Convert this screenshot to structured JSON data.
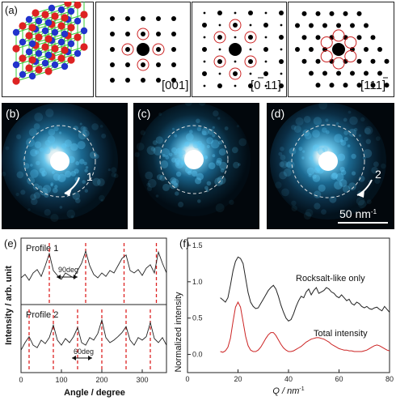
{
  "panels": {
    "a": "(a)",
    "b": "(b)",
    "c": "(c)",
    "d": "(d)",
    "e": "(e)",
    "f": "(f)"
  },
  "zone_axes": [
    "[001]",
    "[0",
    "11]",
    "[111]"
  ],
  "zone_bars": {
    "z011": "1",
    "z111": "11"
  },
  "tem": {
    "arrow1": "1",
    "arrow2": "2",
    "scalebar": "50 nm",
    "scalebar_sup": "-1"
  },
  "colors": {
    "black_curve": "#222222",
    "red_curve": "#cc2222",
    "red_dash": "#dd2222",
    "tem_glow": "#5cc8f5",
    "lattice_green": "#33cc33",
    "atom_blue": "#2233cc",
    "atom_red": "#dd2222"
  },
  "chart_data": [
    {
      "type": "line",
      "panel": "(e)",
      "xlabel": "Angle / degree",
      "ylabel": "Intensity / arb. unit",
      "xlim": [
        0,
        360
      ],
      "xticks": [
        0,
        100,
        200,
        300
      ],
      "series": [
        {
          "name": "Profile 1",
          "peaks_deg": [
            70,
            160,
            255,
            335
          ],
          "annotation": "90deg",
          "x": [
            0,
            10,
            20,
            30,
            40,
            50,
            60,
            70,
            80,
            90,
            100,
            110,
            120,
            130,
            140,
            150,
            160,
            170,
            180,
            190,
            200,
            210,
            220,
            230,
            240,
            250,
            260,
            270,
            280,
            290,
            300,
            310,
            320,
            330,
            340,
            350,
            360
          ],
          "y": [
            0.45,
            0.52,
            0.4,
            0.55,
            0.62,
            0.48,
            0.7,
            0.95,
            0.6,
            0.5,
            0.42,
            0.55,
            0.5,
            0.45,
            0.6,
            0.75,
            1.0,
            0.7,
            0.52,
            0.45,
            0.55,
            0.48,
            0.6,
            0.55,
            0.7,
            0.85,
            0.92,
            0.6,
            0.55,
            0.62,
            0.5,
            0.65,
            0.72,
            0.55,
            0.98,
            0.75,
            0.55
          ]
        },
        {
          "name": "Profile 2",
          "peaks_deg": [
            20,
            80,
            140,
            200,
            260,
            320
          ],
          "annotation": "60deg",
          "x": [
            0,
            10,
            20,
            30,
            40,
            50,
            60,
            70,
            80,
            90,
            100,
            110,
            120,
            130,
            140,
            150,
            160,
            170,
            180,
            190,
            200,
            210,
            220,
            230,
            240,
            250,
            260,
            270,
            280,
            290,
            300,
            310,
            320,
            330,
            340,
            350,
            360
          ],
          "y": [
            0.35,
            0.5,
            0.62,
            0.45,
            0.4,
            0.55,
            0.48,
            0.6,
            0.85,
            0.55,
            0.45,
            0.58,
            0.5,
            0.62,
            0.8,
            0.5,
            0.45,
            0.6,
            0.55,
            0.68,
            0.95,
            0.6,
            0.5,
            0.55,
            0.62,
            0.7,
            0.82,
            0.55,
            0.45,
            0.6,
            0.55,
            0.62,
            0.9,
            0.58,
            0.5,
            0.6,
            0.45
          ]
        }
      ]
    },
    {
      "type": "line",
      "panel": "(f)",
      "xlabel": "Q / nm",
      "xlabel_sup": "-1",
      "ylabel": "Normalized intensity",
      "xlim": [
        0,
        80
      ],
      "ylim": [
        -0.25,
        1.6
      ],
      "xticks": [
        0,
        20,
        40,
        60,
        80
      ],
      "yticks": [
        0.0,
        0.5,
        1.0,
        1.5
      ],
      "series": [
        {
          "name": "Rocksalt-like only",
          "color": "#222222",
          "x": [
            13,
            14,
            15,
            16,
            17,
            18,
            19,
            20,
            21,
            22,
            23,
            24,
            25,
            26,
            27,
            28,
            29,
            30,
            31,
            32,
            33,
            34,
            35,
            36,
            37,
            38,
            39,
            40,
            41,
            42,
            43,
            44,
            45,
            46,
            47,
            48,
            49,
            50,
            51,
            52,
            53,
            54,
            55,
            56,
            57,
            58,
            59,
            60,
            61,
            62,
            63,
            64,
            65,
            66,
            67,
            68,
            69,
            70,
            71,
            72,
            73,
            74,
            75,
            76,
            77,
            78,
            79,
            80
          ],
          "y": [
            0.78,
            0.75,
            0.72,
            0.78,
            0.95,
            1.15,
            1.28,
            1.34,
            1.32,
            1.25,
            1.05,
            0.85,
            0.72,
            0.66,
            0.63,
            0.64,
            0.7,
            0.76,
            0.82,
            0.88,
            0.92,
            0.95,
            0.9,
            0.8,
            0.68,
            0.58,
            0.5,
            0.46,
            0.48,
            0.56,
            0.66,
            0.74,
            0.8,
            0.78,
            0.86,
            0.9,
            0.82,
            0.88,
            0.92,
            0.84,
            0.86,
            0.88,
            0.92,
            0.9,
            0.86,
            0.84,
            0.8,
            0.78,
            0.82,
            0.78,
            0.74,
            0.76,
            0.7,
            0.68,
            0.72,
            0.7,
            0.66,
            0.64,
            0.66,
            0.63,
            0.62,
            0.64,
            0.65,
            0.62,
            0.6,
            0.66,
            0.62,
            0.58
          ]
        },
        {
          "name": "Total intensity",
          "color": "#cc2222",
          "x": [
            13,
            14,
            15,
            16,
            17,
            18,
            19,
            20,
            21,
            22,
            23,
            24,
            25,
            26,
            27,
            28,
            29,
            30,
            31,
            32,
            33,
            34,
            35,
            36,
            37,
            38,
            39,
            40,
            41,
            42,
            43,
            44,
            45,
            46,
            47,
            48,
            49,
            50,
            51,
            52,
            53,
            54,
            55,
            56,
            57,
            58,
            59,
            60,
            61,
            62,
            63,
            64,
            65,
            66,
            67,
            68,
            69,
            70,
            71,
            72,
            73,
            74,
            75,
            76,
            77,
            78,
            79,
            80
          ],
          "y": [
            0.04,
            0.03,
            0.05,
            0.1,
            0.22,
            0.45,
            0.65,
            0.72,
            0.65,
            0.45,
            0.25,
            0.12,
            0.06,
            0.04,
            0.04,
            0.06,
            0.1,
            0.16,
            0.22,
            0.27,
            0.3,
            0.3,
            0.26,
            0.2,
            0.14,
            0.09,
            0.06,
            0.04,
            0.04,
            0.05,
            0.07,
            0.09,
            0.11,
            0.14,
            0.17,
            0.19,
            0.21,
            0.22,
            0.23,
            0.23,
            0.22,
            0.21,
            0.19,
            0.17,
            0.14,
            0.12,
            0.1,
            0.08,
            0.07,
            0.06,
            0.06,
            0.05,
            0.05,
            0.04,
            0.04,
            0.04,
            0.04,
            0.05,
            0.06,
            0.08,
            0.1,
            0.12,
            0.13,
            0.12,
            0.1,
            0.08,
            0.06,
            0.05
          ]
        }
      ]
    }
  ]
}
